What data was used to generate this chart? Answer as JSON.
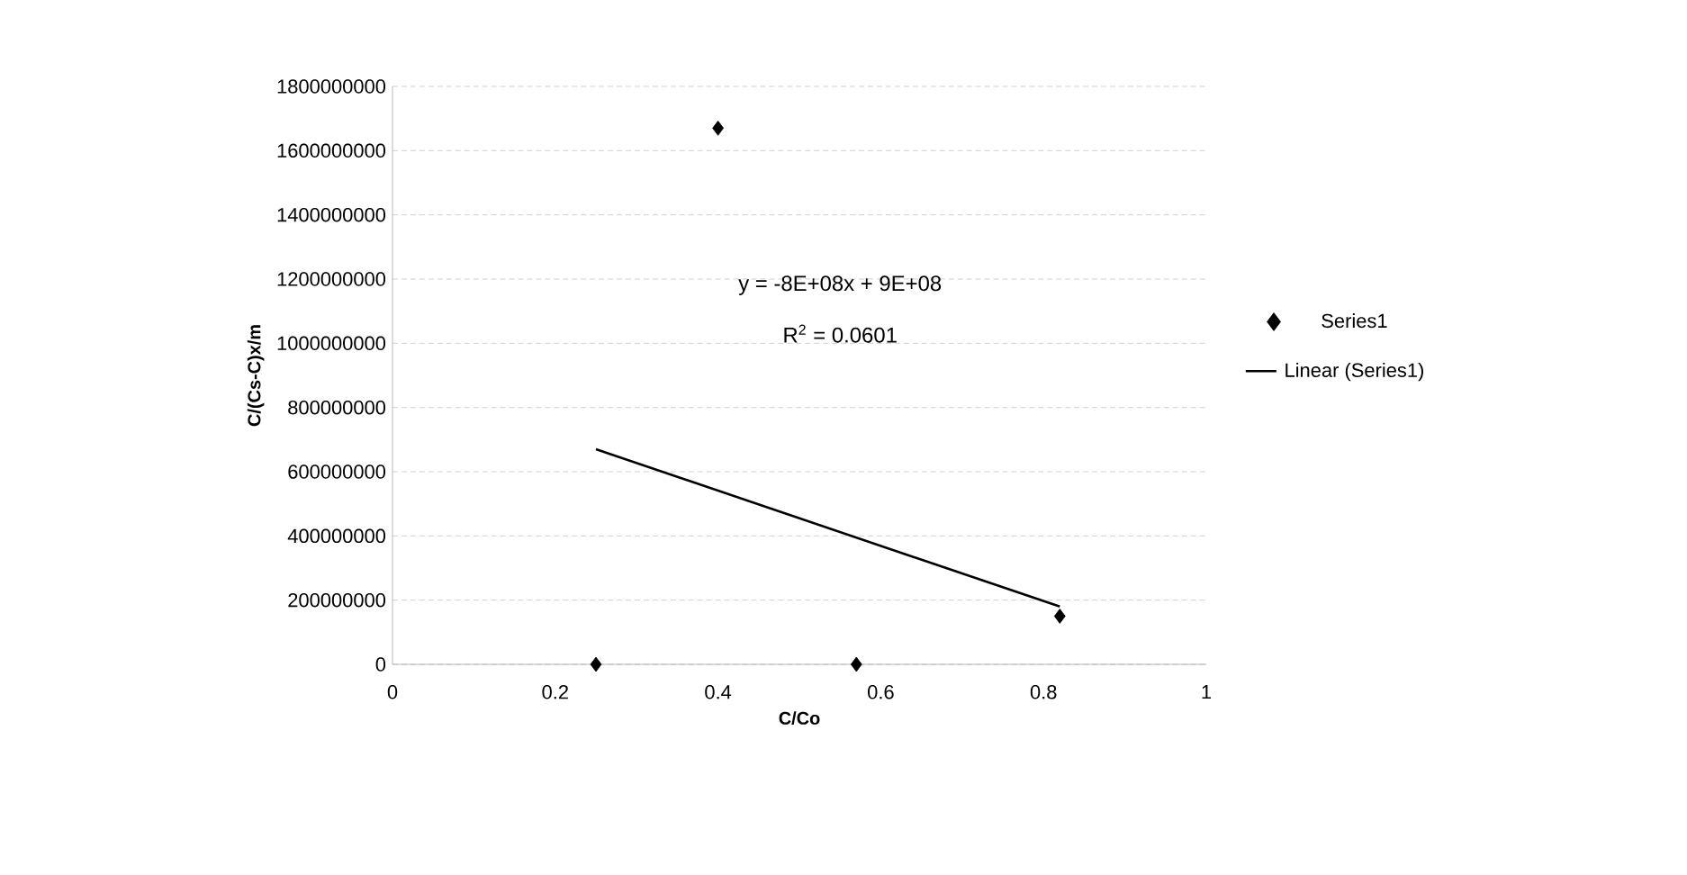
{
  "chart_data": {
    "type": "scatter",
    "xlabel": "C/Co",
    "ylabel": "C/(Cs-C)x/m",
    "xlim": [
      0,
      1
    ],
    "ylim": [
      0,
      1800000000
    ],
    "xticks": [
      0,
      0.2,
      0.4,
      0.6,
      0.8,
      1
    ],
    "yticks": [
      0,
      200000000,
      400000000,
      600000000,
      800000000,
      1000000000,
      1200000000,
      1400000000,
      1600000000,
      1800000000
    ],
    "grid": "y",
    "legend": "right",
    "annotations": [
      "y = -8E+08x + 9E+08",
      "R$^{2}$ = 0.0601"
    ],
    "series": [
      {
        "name": "Series1",
        "color": "#000000",
        "marker": "diamond",
        "x": [
          0.25,
          0.4,
          0.57,
          0.82
        ],
        "values": [
          0,
          1670000000,
          0,
          150000000
        ]
      },
      {
        "name": "Linear (Series1)",
        "type": "line",
        "color": "#000000",
        "x": [
          0.25,
          0.82
        ],
        "values": [
          670000000,
          180000000
        ]
      }
    ]
  }
}
